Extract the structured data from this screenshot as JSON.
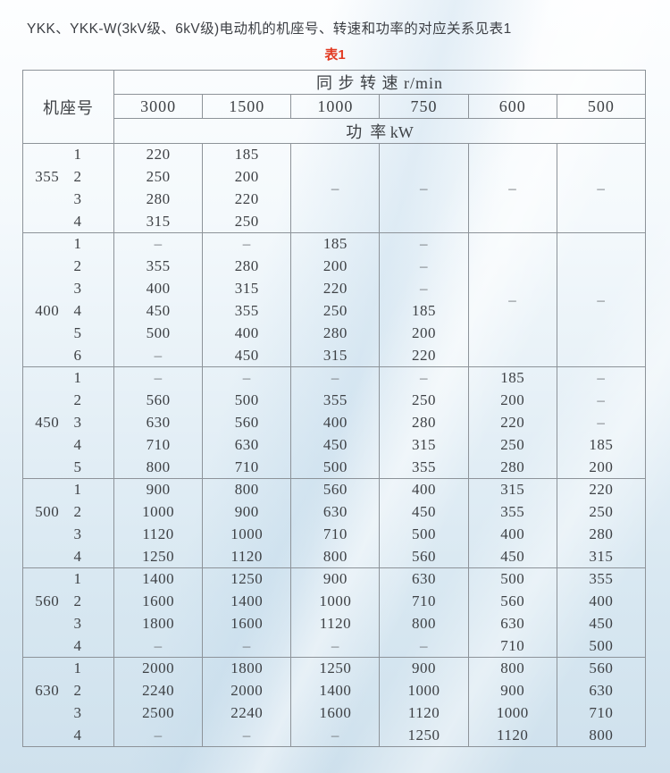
{
  "title": "YKK、YKK-W(3kV级、6kV级)电动机的机座号、转速和功率的对应关系见表1",
  "caption": "表1",
  "colors": {
    "caption_red": "#e23a22",
    "grid_line": "#8d9399",
    "text": "#3e4145",
    "background_bottom": "#cfe1ed"
  },
  "table": {
    "corner_header": "机座号",
    "group_header": "同 步 转 速 r/min",
    "unit_header": "功  率 kW",
    "speeds": [
      "3000",
      "1500",
      "1000",
      "750",
      "600",
      "500"
    ],
    "dash": "–",
    "groups": [
      {
        "frame": "355",
        "label_row": 1,
        "subs": [
          "1",
          "2",
          "3",
          "4"
        ],
        "rows": [
          [
            "220",
            "185",
            null,
            null,
            null,
            null
          ],
          [
            "250",
            "200",
            null,
            null,
            null,
            null
          ],
          [
            "280",
            "220",
            null,
            null,
            null,
            null
          ],
          [
            "315",
            "250",
            null,
            null,
            null,
            null
          ]
        ],
        "merged": [
          {
            "col": 2,
            "value": "–"
          },
          {
            "col": 3,
            "value": "–"
          },
          {
            "col": 4,
            "value": "–"
          },
          {
            "col": 5,
            "value": "–"
          }
        ]
      },
      {
        "frame": "400",
        "label_row": 3,
        "subs": [
          "1",
          "2",
          "3",
          "4",
          "5",
          "6"
        ],
        "rows": [
          [
            "–",
            "–",
            "185",
            "–",
            null,
            null
          ],
          [
            "355",
            "280",
            "200",
            "–",
            null,
            null
          ],
          [
            "400",
            "315",
            "220",
            "–",
            null,
            null
          ],
          [
            "450",
            "355",
            "250",
            "185",
            null,
            null
          ],
          [
            "500",
            "400",
            "280",
            "200",
            null,
            null
          ],
          [
            "–",
            "450",
            "315",
            "220",
            null,
            null
          ]
        ],
        "merged": [
          {
            "col": 4,
            "value": "–"
          },
          {
            "col": 5,
            "value": "–"
          }
        ]
      },
      {
        "frame": "450",
        "label_row": 2,
        "subs": [
          "1",
          "2",
          "3",
          "4",
          "5"
        ],
        "rows": [
          [
            "–",
            "–",
            "–",
            "–",
            "185",
            "–"
          ],
          [
            "560",
            "500",
            "355",
            "250",
            "200",
            "–"
          ],
          [
            "630",
            "560",
            "400",
            "280",
            "220",
            "–"
          ],
          [
            "710",
            "630",
            "450",
            "315",
            "250",
            "185"
          ],
          [
            "800",
            "710",
            "500",
            "355",
            "280",
            "200"
          ]
        ],
        "merged": []
      },
      {
        "frame": "500",
        "label_row": 1,
        "subs": [
          "1",
          "2",
          "3",
          "4"
        ],
        "rows": [
          [
            "900",
            "800",
            "560",
            "400",
            "315",
            "220"
          ],
          [
            "1000",
            "900",
            "630",
            "450",
            "355",
            "250"
          ],
          [
            "1120",
            "1000",
            "710",
            "500",
            "400",
            "280"
          ],
          [
            "1250",
            "1120",
            "800",
            "560",
            "450",
            "315"
          ]
        ],
        "merged": []
      },
      {
        "frame": "560",
        "label_row": 1,
        "subs": [
          "1",
          "2",
          "3",
          "4"
        ],
        "rows": [
          [
            "1400",
            "1250",
            "900",
            "630",
            "500",
            "355"
          ],
          [
            "1600",
            "1400",
            "1000",
            "710",
            "560",
            "400"
          ],
          [
            "1800",
            "1600",
            "1120",
            "800",
            "630",
            "450"
          ],
          [
            "–",
            "–",
            "–",
            "–",
            "710",
            "500"
          ]
        ],
        "merged": []
      },
      {
        "frame": "630",
        "label_row": 1,
        "subs": [
          "1",
          "2",
          "3",
          "4"
        ],
        "rows": [
          [
            "2000",
            "1800",
            "1250",
            "900",
            "800",
            "560"
          ],
          [
            "2240",
            "2000",
            "1400",
            "1000",
            "900",
            "630"
          ],
          [
            "2500",
            "2240",
            "1600",
            "1120",
            "1000",
            "710"
          ],
          [
            "–",
            "–",
            "–",
            "1250",
            "1120",
            "800"
          ]
        ],
        "merged": []
      }
    ]
  }
}
